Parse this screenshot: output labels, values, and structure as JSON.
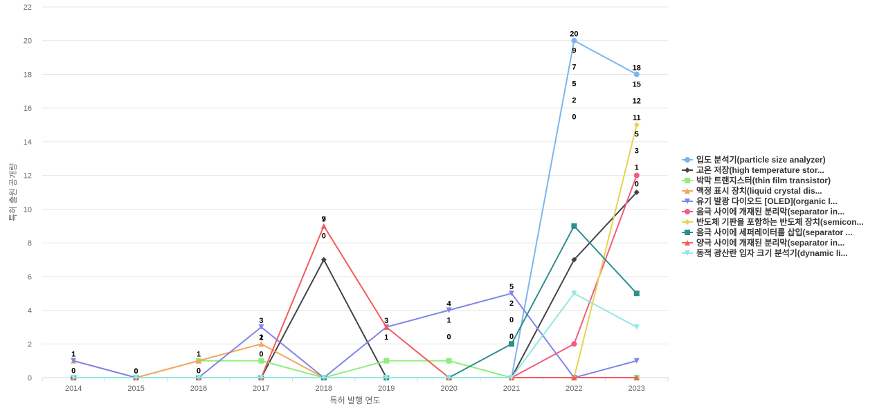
{
  "chart_data": {
    "type": "line",
    "title": "",
    "xlabel": "특허 발행 연도",
    "ylabel": "특허 출원 공개량",
    "x": [
      "2014",
      "2015",
      "2016",
      "2017",
      "2018",
      "2019",
      "2020",
      "2021",
      "2022",
      "2023"
    ],
    "yticks": [
      "0",
      "2",
      "4",
      "6",
      "8",
      "10",
      "12",
      "14",
      "16",
      "18",
      "20",
      "22"
    ],
    "ylim": [
      0,
      22
    ],
    "grid": true,
    "legend_position": "right",
    "series": [
      {
        "name": "입도 분석기(particle size analyzer)",
        "color": "#7cb5ec",
        "marker": "circle",
        "values": [
          0,
          0,
          0,
          0,
          0,
          0,
          0,
          0,
          20,
          18
        ]
      },
      {
        "name": "고온 저장(high temperature stor...",
        "color": "#434348",
        "marker": "diamond",
        "values": [
          0,
          0,
          0,
          0,
          7,
          0,
          0,
          0,
          7,
          11
        ]
      },
      {
        "name": "박막 트랜지스터(thin film transistor)",
        "color": "#90ed7d",
        "marker": "square",
        "values": [
          0,
          0,
          1,
          1,
          0,
          1,
          1,
          0,
          0,
          0
        ]
      },
      {
        "name": "액정 표시 장치(liquid crystal dis...",
        "color": "#f7a35c",
        "marker": "triangle-up",
        "values": [
          1,
          0,
          1,
          2,
          0,
          0,
          0,
          0,
          0,
          0
        ]
      },
      {
        "name": "유기 발광 다이오드 [OLED](organic l...",
        "color": "#8085e9",
        "marker": "triangle-down",
        "values": [
          1,
          0,
          0,
          3,
          0,
          3,
          4,
          5,
          0,
          1
        ]
      },
      {
        "name": "음극 사이에 개재된 분리막(separator in...",
        "color": "#f15c80",
        "marker": "circle",
        "values": [
          0,
          0,
          0,
          0,
          0,
          0,
          0,
          0,
          2,
          12
        ]
      },
      {
        "name": "반도체 기판을 포함하는 반도체 장치(semicon...",
        "color": "#e4d354",
        "marker": "diamond",
        "values": [
          0,
          0,
          0,
          0,
          0,
          0,
          0,
          0,
          0,
          15
        ]
      },
      {
        "name": "음극 사이에 세퍼레이터를 삽입(separator ...",
        "color": "#2b908f",
        "marker": "square",
        "values": [
          0,
          0,
          0,
          0,
          0,
          0,
          0,
          2,
          9,
          5
        ]
      },
      {
        "name": "양극 사이에 개재된 분리막(separator in...",
        "color": "#f45b5b",
        "marker": "triangle-up",
        "values": [
          0,
          0,
          0,
          0,
          9,
          3,
          0,
          0,
          0,
          0
        ]
      },
      {
        "name": "동적 광산란 입자 크기 분석기(dynamic li...",
        "color": "#91e8e1",
        "marker": "triangle-down",
        "values": [
          0,
          0,
          0,
          0,
          0,
          0,
          0,
          0,
          5,
          3
        ]
      }
    ],
    "data_labels": [
      [
        "1",
        "0",
        "1",
        "3",
        "7",
        "3",
        "4",
        "5",
        "20",
        "18"
      ],
      [
        "0",
        "0",
        "0",
        "1",
        "9",
        "1",
        "1",
        "2",
        "9",
        "15"
      ],
      [
        "",
        "",
        "",
        "2",
        "0",
        "",
        "0",
        "0",
        "7",
        "12"
      ],
      [
        "",
        "",
        "",
        "0",
        "",
        "",
        "",
        "0",
        "5",
        "11"
      ],
      [
        "",
        "",
        "",
        "",
        "",
        "",
        "",
        "",
        "2",
        "5"
      ],
      [
        "",
        "",
        "",
        "",
        "",
        "",
        "",
        "",
        "0",
        "3"
      ],
      [
        "",
        "",
        "",
        "",
        "",
        "",
        "",
        "",
        "",
        "1"
      ],
      [
        "",
        "",
        "",
        "",
        "",
        "",
        "",
        "",
        "",
        "0"
      ]
    ]
  }
}
